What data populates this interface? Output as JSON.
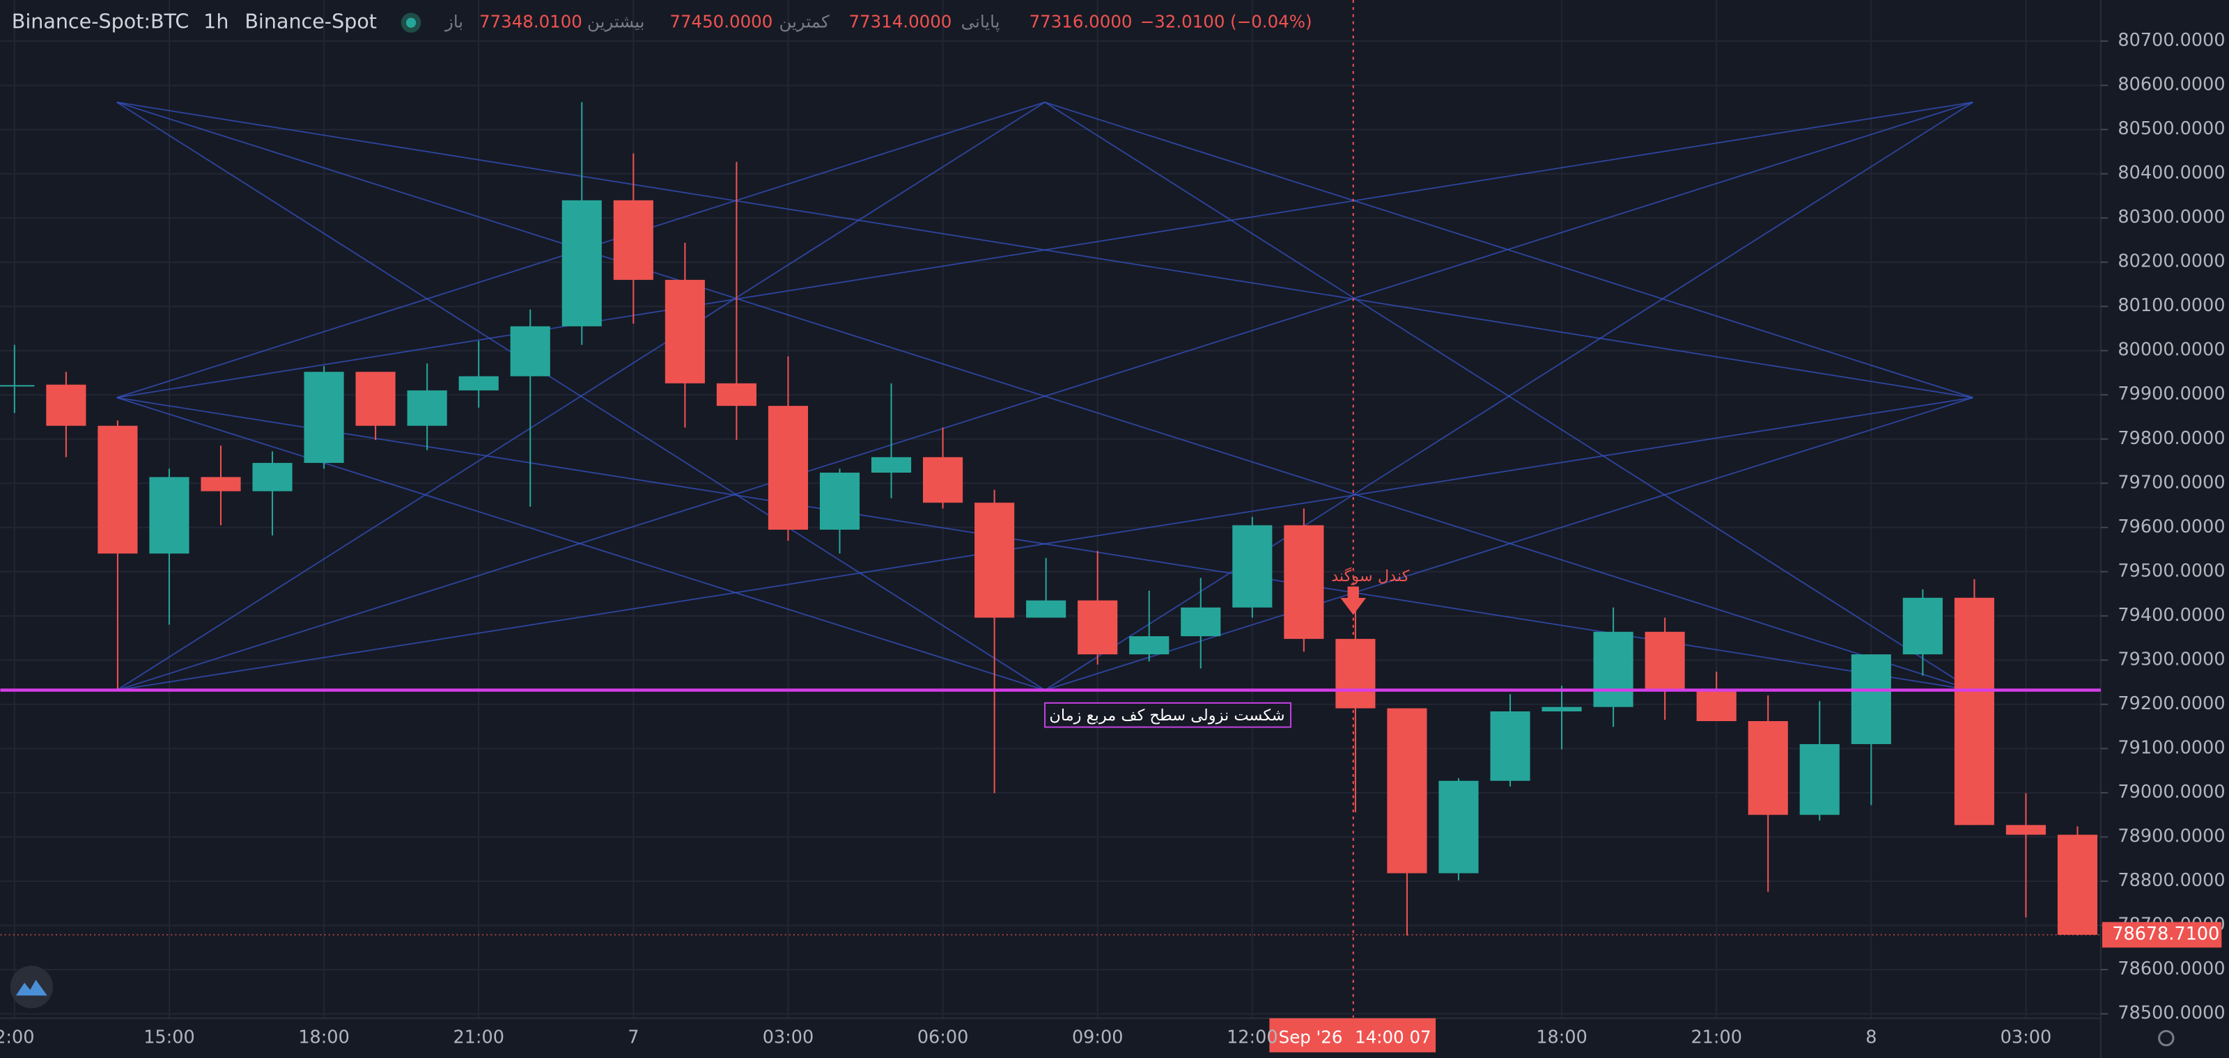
{
  "chart_data": {
    "type": "candlestick",
    "symbol": "Binance-Spot:BTC",
    "interval": "1h",
    "exchange": "Binance-Spot",
    "header": [
      {
        "label": "باز",
        "value": "77348.0100"
      },
      {
        "label": "بیشترین",
        "value": "77450.0000"
      },
      {
        "label": "کمترین",
        "value": "77314.0000"
      },
      {
        "label": "پایانی",
        "value": "77316.0000"
      }
    ],
    "change": "−32.0100 (−0.04%)",
    "categories": [
      "2:00",
      null,
      null,
      "15:00",
      null,
      null,
      "18:00",
      null,
      null,
      "21:00",
      null,
      null,
      "7",
      null,
      null,
      "03:00",
      null,
      null,
      "06:00",
      null,
      null,
      "09:00",
      null,
      null,
      "12:00",
      null,
      null,
      null,
      null,
      null,
      "18:00",
      null,
      null,
      "21:00",
      null,
      null,
      "8",
      null,
      null,
      "03:00",
      null
    ],
    "open": [
      79920,
      79923,
      79830,
      79541,
      79714,
      79682,
      79746,
      79952,
      79830,
      79910,
      79942,
      80055,
      80340,
      80160,
      79926,
      79875,
      79595,
      79724,
      79759,
      79656,
      79396,
      79435,
      79313,
      79354,
      79419,
      79605,
      79348,
      79191,
      78818,
      79027,
      79184,
      79194,
      79364,
      79232,
      79162,
      78950,
      79110,
      79313,
      79441,
      78927,
      78905
    ],
    "high": [
      80013,
      79952,
      79842,
      79733,
      79785,
      79772,
      79965,
      79952,
      79971,
      80022,
      80093,
      80562,
      80446,
      80244,
      80427,
      79987,
      79733,
      79926,
      79826,
      79685,
      79531,
      79547,
      79457,
      79486,
      79624,
      79643,
      79422,
      79191,
      79033,
      79223,
      79242,
      79419,
      79396,
      79274,
      79220,
      79207,
      79313,
      79460,
      79483,
      78999,
      78924
    ],
    "low": [
      79859,
      79759,
      79232,
      79380,
      79605,
      79582,
      79733,
      79798,
      79775,
      79871,
      79647,
      80013,
      80061,
      79826,
      79798,
      79570,
      79541,
      79666,
      79643,
      78999,
      79396,
      79290,
      79297,
      79281,
      79396,
      79319,
      78956,
      78677,
      78802,
      79014,
      79098,
      79149,
      79165,
      79162,
      78776,
      78937,
      78972,
      79265,
      78927,
      78718,
      78677
    ],
    "close": [
      79922,
      79830,
      79541,
      79714,
      79682,
      79746,
      79952,
      79830,
      79910,
      79942,
      80055,
      80340,
      80160,
      79926,
      79875,
      79595,
      79724,
      79759,
      79656,
      79396,
      79435,
      79313,
      79354,
      79419,
      79605,
      79348,
      79191,
      78818,
      79027,
      79184,
      79194,
      79364,
      79232,
      79162,
      78950,
      79110,
      79313,
      79441,
      78927,
      78905,
      78678.71
    ],
    "up_color": "#26a69a",
    "down_color": "#ef5350",
    "ylim": [
      78490,
      80793
    ],
    "yticks": [
      {
        "value": 78500,
        "label": "78500.0000"
      },
      {
        "value": 78600,
        "label": "78600.0000"
      },
      {
        "value": 78700,
        "label": "78700.0000"
      },
      {
        "value": 78800,
        "label": "78800.0000"
      },
      {
        "value": 78900,
        "label": "78900.0000"
      },
      {
        "value": 79000,
        "label": "79000.0000"
      },
      {
        "value": 79100,
        "label": "79100.0000"
      },
      {
        "value": 79200,
        "label": "79200.0000"
      },
      {
        "value": 79300,
        "label": "79300.0000"
      },
      {
        "value": 79400,
        "label": "79400.0000"
      },
      {
        "value": 79500,
        "label": "79500.0000"
      },
      {
        "value": 79600,
        "label": "79600.0000"
      },
      {
        "value": 79700,
        "label": "79700.0000"
      },
      {
        "value": 79800,
        "label": "79800.0000"
      },
      {
        "value": 79900,
        "label": "79900.0000"
      },
      {
        "value": 80000,
        "label": "80000.0000"
      },
      {
        "value": 80100,
        "label": "80100.0000"
      },
      {
        "value": 80200,
        "label": "80200.0000"
      },
      {
        "value": 80300,
        "label": "80300.0000"
      },
      {
        "value": 80400,
        "label": "80400.0000"
      },
      {
        "value": 80500,
        "label": "80500.0000"
      },
      {
        "value": 80600,
        "label": "80600.0000"
      },
      {
        "value": 80700,
        "label": "80700.0000"
      }
    ],
    "grid": true,
    "level": {
      "value": 79232,
      "color": "#d63ee8"
    },
    "last_price": {
      "value": 78678.71,
      "label": "78678.7100"
    },
    "annotations": [
      "کندل سوگند",
      "شکست نزولی سطح کف مربع زمان"
    ],
    "crosshair_labels": [
      "Sep '26",
      "14:00 07"
    ]
  }
}
